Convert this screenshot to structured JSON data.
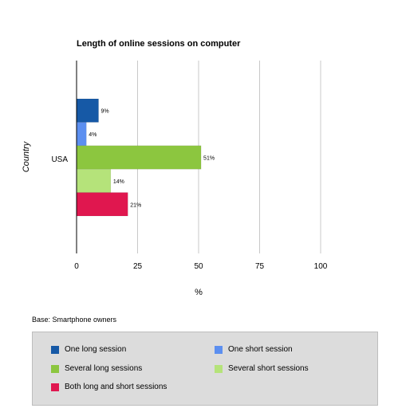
{
  "chart_data": {
    "type": "bar",
    "orientation": "horizontal",
    "title": "Length of online sessions on computer",
    "xlabel": "%",
    "ylabel": "Country",
    "categories": [
      "USA"
    ],
    "xlim": [
      0,
      100
    ],
    "xticks": [
      0,
      25,
      50,
      75,
      100
    ],
    "grid": true,
    "legend_position": "bottom",
    "series": [
      {
        "name": "One long session",
        "values": [
          9
        ],
        "label": "9%",
        "color": "#1659a6"
      },
      {
        "name": "One short session",
        "values": [
          4
        ],
        "label": "4%",
        "color": "#5c8ff0"
      },
      {
        "name": "Several long sessions",
        "values": [
          51
        ],
        "label": "51%",
        "color": "#8cc63f"
      },
      {
        "name": "Several short sessions",
        "values": [
          14
        ],
        "label": "14%",
        "color": "#b5e37a"
      },
      {
        "name": "Both long and short sessions",
        "values": [
          21
        ],
        "label": "21%",
        "color": "#e0174f"
      }
    ]
  },
  "footnote": "Base: Smartphone owners"
}
